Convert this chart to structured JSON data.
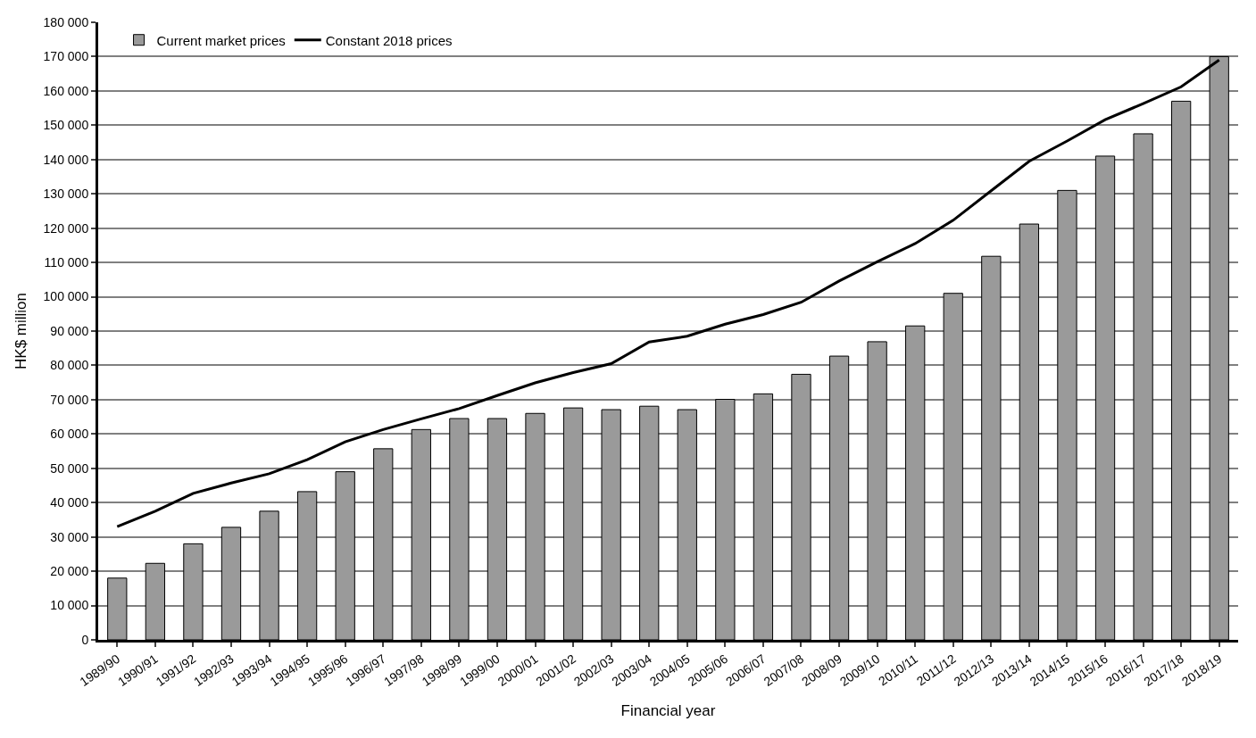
{
  "chart_data": {
    "type": "bar",
    "xlabel": "Financial year",
    "ylabel": "HK$ million",
    "categories": [
      "1989/90",
      "1990/91",
      "1991/92",
      "1992/93",
      "1993/94",
      "1994/95",
      "1995/96",
      "1996/97",
      "1997/98",
      "1998/99",
      "1999/00",
      "2000/01",
      "2001/02",
      "2002/03",
      "2003/04",
      "2004/05",
      "2005/06",
      "2006/07",
      "2007/08",
      "2008/09",
      "2009/10",
      "2010/11",
      "2011/12",
      "2012/13",
      "2013/14",
      "2014/15",
      "2015/16",
      "2016/17",
      "2017/18",
      "2018/19"
    ],
    "series": [
      {
        "name": "Current market prices",
        "color": "#9a9a9a",
        "values": [
          18000,
          22300,
          28000,
          32800,
          37500,
          43200,
          49000,
          55700,
          61300,
          64500,
          64500,
          66000,
          67600,
          67100,
          68100,
          67100,
          70100,
          71700,
          77400,
          82700,
          86900,
          91500,
          101000,
          111800,
          121200,
          131000,
          141000,
          147500,
          157000,
          170000
        ]
      },
      {
        "name": "Constant 2018 prices",
        "type": "line",
        "color": "#000000",
        "values": [
          33000,
          37500,
          42700,
          45700,
          48400,
          52500,
          57700,
          61300,
          64400,
          67400,
          71200,
          74900,
          77900,
          80500,
          86800,
          88500,
          92000,
          94800,
          98400,
          104600,
          110200,
          115500,
          122300,
          130900,
          139500,
          145400,
          151600,
          156300,
          161200,
          169000
        ]
      }
    ],
    "ylim": [
      0,
      180000
    ],
    "yticks": [
      {
        "value": 0,
        "label": "0"
      },
      {
        "value": 10000,
        "label": "10 000"
      },
      {
        "value": 20000,
        "label": "20 000"
      },
      {
        "value": 30000,
        "label": "30 000"
      },
      {
        "value": 40000,
        "label": "40 000"
      },
      {
        "value": 50000,
        "label": "50 000"
      },
      {
        "value": 60000,
        "label": "60 000"
      },
      {
        "value": 70000,
        "label": "70 000"
      },
      {
        "value": 80000,
        "label": "80 000"
      },
      {
        "value": 90000,
        "label": "90 000"
      },
      {
        "value": 100000,
        "label": "100 000"
      },
      {
        "value": 110000,
        "label": "110 000"
      },
      {
        "value": 120000,
        "label": "120 000"
      },
      {
        "value": 130000,
        "label": "130 000"
      },
      {
        "value": 140000,
        "label": "140 000"
      },
      {
        "value": 150000,
        "label": "150 000"
      },
      {
        "value": 160000,
        "label": "160 000"
      },
      {
        "value": 170000,
        "label": "170 000"
      },
      {
        "value": 180000,
        "label": "180 000"
      }
    ],
    "grid": "y",
    "legend": "top left",
    "marker": "none",
    "line_style": "solid"
  }
}
